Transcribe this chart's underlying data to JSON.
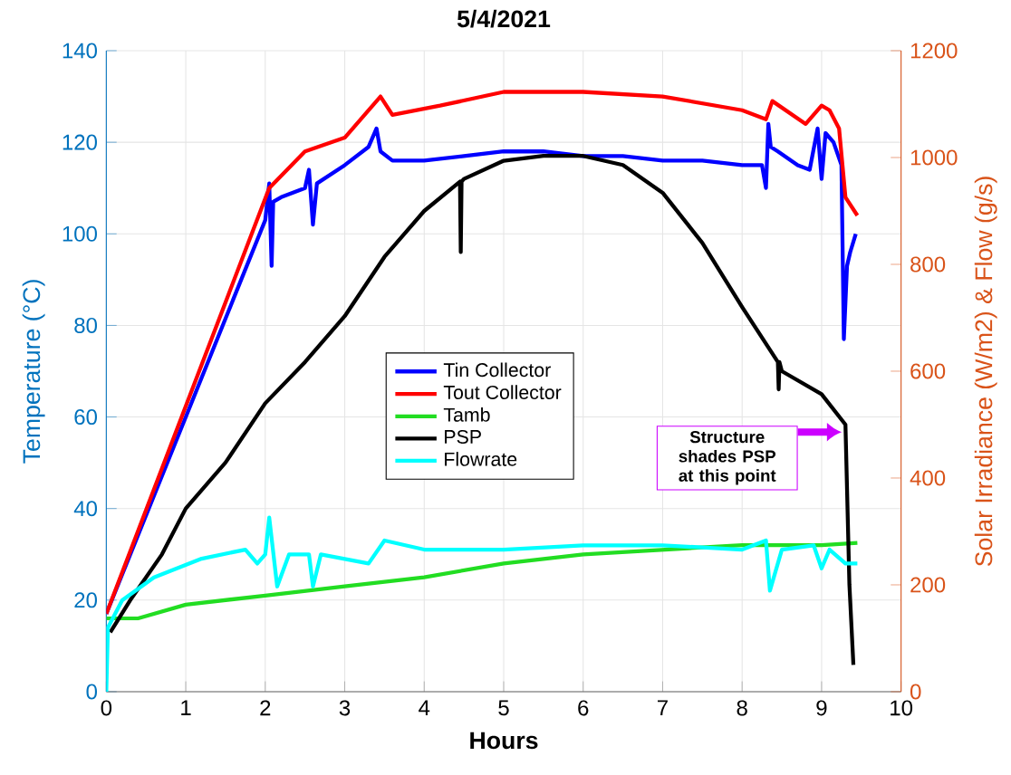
{
  "chart_data": {
    "type": "line",
    "title": "5/4/2021",
    "xlabel": "Hours",
    "ylabel": "Temperature (°C)",
    "y2label": "Solar Irradiance (W/m2) & Flow (g/s)",
    "xlim": [
      0,
      10
    ],
    "xticks": [
      0,
      1,
      2,
      3,
      4,
      5,
      6,
      7,
      8,
      9,
      10
    ],
    "ylim": [
      0,
      140
    ],
    "yticks": [
      0,
      20,
      40,
      60,
      80,
      100,
      120,
      140
    ],
    "y2lim": [
      0,
      1200
    ],
    "y2ticks": [
      0,
      200,
      400,
      600,
      800,
      1000,
      1200
    ],
    "grid": true,
    "legend": "center",
    "line_style": "solid",
    "series": [
      {
        "name": "Tin Collector",
        "color": "#0000ff",
        "x": [
          0,
          2.0,
          2.05,
          2.08,
          2.1,
          2.2,
          2.5,
          2.55,
          2.6,
          2.65,
          3.0,
          3.3,
          3.4,
          3.45,
          3.6,
          4.0,
          4.5,
          5.0,
          5.5,
          6.0,
          6.5,
          7.0,
          7.5,
          8.0,
          8.25,
          8.3,
          8.33,
          8.36,
          8.45,
          8.7,
          8.85,
          8.95,
          9.0,
          9.05,
          9.15,
          9.25,
          9.28,
          9.32,
          9.36,
          9.43
        ],
        "values": [
          17,
          103,
          111,
          93,
          107,
          108,
          110,
          114,
          102,
          111,
          115,
          119,
          123,
          118,
          116,
          116,
          117,
          118,
          118,
          117,
          117,
          116,
          116,
          115,
          115,
          110,
          124,
          119,
          118,
          115,
          114,
          123,
          112,
          122,
          120,
          115,
          77,
          93,
          96,
          100
        ]
      },
      {
        "name": "Tout Collector",
        "color": "#ff0000",
        "x": [
          0,
          2.05,
          2.5,
          3.0,
          3.45,
          3.6,
          4.2,
          5.0,
          6.0,
          7.0,
          8.0,
          8.3,
          8.38,
          8.8,
          9.0,
          9.1,
          9.22,
          9.3,
          9.45
        ],
        "values": [
          17,
          110,
          118,
          121,
          130,
          126,
          128,
          131,
          131,
          130,
          127,
          125,
          129,
          124,
          128,
          127,
          123,
          108,
          104
        ]
      },
      {
        "name": "Tamb",
        "color": "#22dd22",
        "x": [
          0,
          0.4,
          1.0,
          2.0,
          3.0,
          4.0,
          5.0,
          6.0,
          7.0,
          8.0,
          9.0,
          9.45
        ],
        "values": [
          16,
          16,
          19,
          21,
          23,
          25,
          28,
          30,
          31,
          32,
          32,
          32.5
        ]
      },
      {
        "name": "PSP",
        "color": "#000000",
        "axis": "y2",
        "x": [
          0.05,
          0.3,
          0.7,
          1.0,
          1.5,
          2.0,
          2.5,
          3.0,
          3.5,
          4.0,
          4.45,
          4.46,
          4.47,
          4.5,
          5.0,
          5.5,
          6.0,
          6.5,
          7.0,
          7.5,
          8.0,
          8.45,
          8.46,
          8.47,
          8.5,
          9.0,
          9.3,
          9.35,
          9.4
        ],
        "values": [
          111,
          171,
          257,
          343,
          429,
          540,
          617,
          703,
          814,
          900,
          955,
          823,
          955,
          960,
          994,
          1003,
          1003,
          986,
          934,
          840,
          720,
          617,
          566,
          617,
          600,
          557,
          500,
          200,
          50
        ]
      },
      {
        "name": "Flowrate",
        "color": "#00ffff",
        "axis": "y2",
        "x": [
          0,
          0.02,
          0.2,
          0.6,
          1.2,
          1.75,
          1.9,
          2.0,
          2.05,
          2.15,
          2.3,
          2.55,
          2.6,
          2.7,
          3.3,
          3.5,
          4.0,
          5.0,
          6.0,
          7.0,
          8.0,
          8.3,
          8.35,
          8.5,
          8.9,
          9.0,
          9.1,
          9.3,
          9.45
        ],
        "values": [
          0,
          120,
          171,
          214,
          249,
          266,
          240,
          257,
          326,
          197,
          257,
          257,
          197,
          257,
          240,
          283,
          266,
          266,
          274,
          274,
          266,
          283,
          189,
          266,
          274,
          231,
          266,
          240,
          240
        ]
      }
    ],
    "annotations": [
      "Structure shades PSP at this point"
    ]
  }
}
